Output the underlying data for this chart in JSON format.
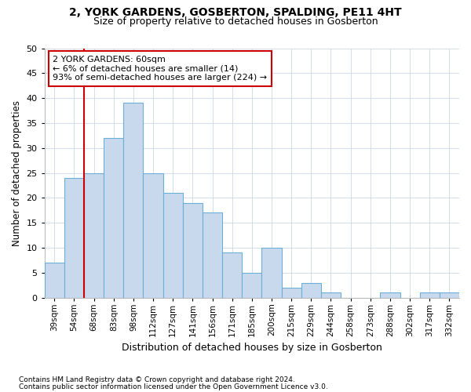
{
  "title1": "2, YORK GARDENS, GOSBERTON, SPALDING, PE11 4HT",
  "title2": "Size of property relative to detached houses in Gosberton",
  "xlabel": "Distribution of detached houses by size in Gosberton",
  "ylabel": "Number of detached properties",
  "footnote1": "Contains HM Land Registry data © Crown copyright and database right 2024.",
  "footnote2": "Contains public sector information licensed under the Open Government Licence v3.0.",
  "categories": [
    "39sqm",
    "54sqm",
    "68sqm",
    "83sqm",
    "98sqm",
    "112sqm",
    "127sqm",
    "141sqm",
    "156sqm",
    "171sqm",
    "185sqm",
    "200sqm",
    "215sqm",
    "229sqm",
    "244sqm",
    "258sqm",
    "273sqm",
    "288sqm",
    "302sqm",
    "317sqm",
    "332sqm"
  ],
  "values": [
    7,
    24,
    25,
    32,
    39,
    25,
    21,
    19,
    17,
    9,
    5,
    10,
    2,
    3,
    1,
    0,
    0,
    1,
    0,
    1,
    1
  ],
  "bar_color": "#c8d9ee",
  "bar_edge_color": "#6baed6",
  "ylim": [
    0,
    50
  ],
  "yticks": [
    0,
    5,
    10,
    15,
    20,
    25,
    30,
    35,
    40,
    45,
    50
  ],
  "property_line_x": 1.5,
  "annotation_line1": "2 YORK GARDENS: 60sqm",
  "annotation_line2": "← 6% of detached houses are smaller (14)",
  "annotation_line3": "93% of semi-detached houses are larger (224) →",
  "annotation_box_color": "#ffffff",
  "annotation_box_edge_color": "#cc0000",
  "red_line_color": "#cc0000",
  "background_color": "#ffffff",
  "grid_color": "#ccd8e8"
}
